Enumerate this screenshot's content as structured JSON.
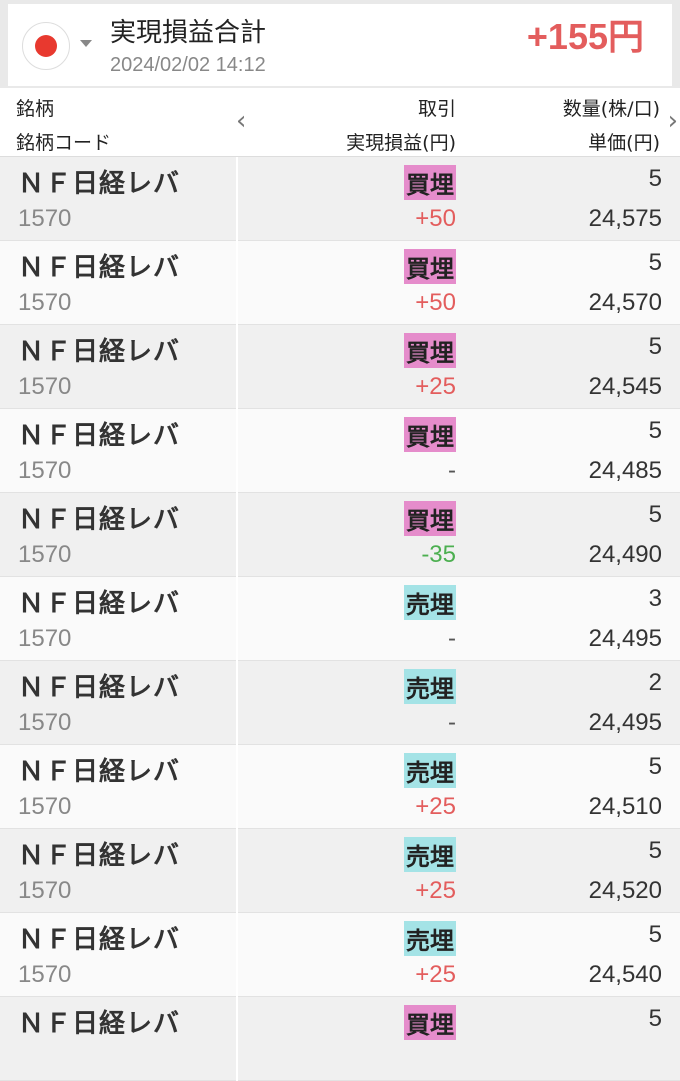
{
  "summary": {
    "title": "実現損益合計",
    "date": "2024/02/02 14:12",
    "total": "+155円",
    "flag": "japan-flag-icon"
  },
  "columns": {
    "name": "銘柄",
    "code": "銘柄コード",
    "trade": "取引",
    "pl": "実現損益(円)",
    "qty": "数量(株/口)",
    "price": "単価(円)"
  },
  "colors": {
    "positive": "#e35d5d",
    "negative": "#4caf50",
    "neutral": "#555555",
    "buy": "#e58ccb",
    "sell": "#a4e3e6"
  },
  "rows": [
    {
      "name": "ＮＦ日経レバ",
      "code": "1570",
      "trade": "買埋",
      "type": "buy",
      "pl": "+50",
      "qty": "5",
      "price": "24,575"
    },
    {
      "name": "ＮＦ日経レバ",
      "code": "1570",
      "trade": "買埋",
      "type": "buy",
      "pl": "+50",
      "qty": "5",
      "price": "24,570"
    },
    {
      "name": "ＮＦ日経レバ",
      "code": "1570",
      "trade": "買埋",
      "type": "buy",
      "pl": "+25",
      "qty": "5",
      "price": "24,545"
    },
    {
      "name": "ＮＦ日経レバ",
      "code": "1570",
      "trade": "買埋",
      "type": "buy",
      "pl": "-",
      "qty": "5",
      "price": "24,485"
    },
    {
      "name": "ＮＦ日経レバ",
      "code": "1570",
      "trade": "買埋",
      "type": "buy",
      "pl": "-35",
      "qty": "5",
      "price": "24,490"
    },
    {
      "name": "ＮＦ日経レバ",
      "code": "1570",
      "trade": "売埋",
      "type": "sell",
      "pl": "-",
      "qty": "3",
      "price": "24,495"
    },
    {
      "name": "ＮＦ日経レバ",
      "code": "1570",
      "trade": "売埋",
      "type": "sell",
      "pl": "-",
      "qty": "2",
      "price": "24,495"
    },
    {
      "name": "ＮＦ日経レバ",
      "code": "1570",
      "trade": "売埋",
      "type": "sell",
      "pl": "+25",
      "qty": "5",
      "price": "24,510"
    },
    {
      "name": "ＮＦ日経レバ",
      "code": "1570",
      "trade": "売埋",
      "type": "sell",
      "pl": "+25",
      "qty": "5",
      "price": "24,520"
    },
    {
      "name": "ＮＦ日経レバ",
      "code": "1570",
      "trade": "売埋",
      "type": "sell",
      "pl": "+25",
      "qty": "5",
      "price": "24,540"
    },
    {
      "name": "ＮＦ日経レバ",
      "code": "",
      "trade": "買埋",
      "type": "buy",
      "pl": "",
      "qty": "5",
      "price": ""
    }
  ]
}
